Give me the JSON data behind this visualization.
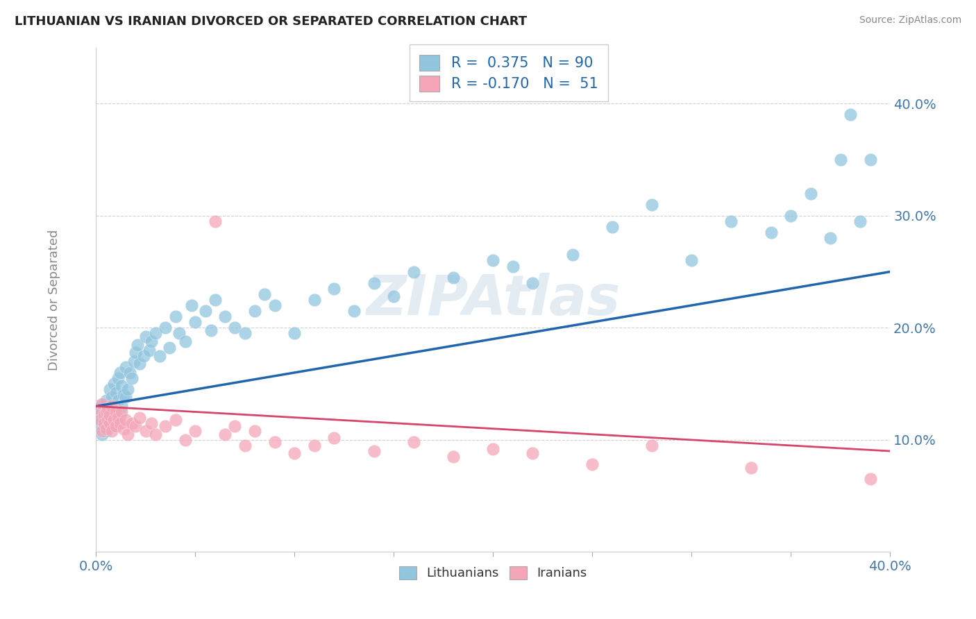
{
  "title": "LITHUANIAN VS IRANIAN DIVORCED OR SEPARATED CORRELATION CHART",
  "source": "Source: ZipAtlas.com",
  "ylabel": "Divorced or Separated",
  "xlim": [
    0.0,
    0.4
  ],
  "ylim": [
    0.0,
    0.45
  ],
  "xticks": [
    0.0,
    0.05,
    0.1,
    0.15,
    0.2,
    0.25,
    0.3,
    0.35,
    0.4
  ],
  "ytick_positions": [
    0.1,
    0.2,
    0.3,
    0.4
  ],
  "ytick_labels": [
    "10.0%",
    "20.0%",
    "30.0%",
    "40.0%"
  ],
  "R_lithuanian": 0.375,
  "N_lithuanian": 90,
  "R_iranian": -0.17,
  "N_iranian": 51,
  "blue_color": "#92c5de",
  "pink_color": "#f4a6b8",
  "blue_line_color": "#2166ac",
  "pink_line_color": "#d6456b",
  "watermark": "ZIPAtlas",
  "legend_items": [
    "Lithuanians",
    "Iranians"
  ],
  "lithuanian_x": [
    0.001,
    0.002,
    0.002,
    0.003,
    0.003,
    0.003,
    0.004,
    0.004,
    0.004,
    0.004,
    0.005,
    0.005,
    0.005,
    0.005,
    0.006,
    0.006,
    0.006,
    0.007,
    0.007,
    0.007,
    0.008,
    0.008,
    0.008,
    0.009,
    0.009,
    0.01,
    0.01,
    0.01,
    0.011,
    0.011,
    0.012,
    0.012,
    0.013,
    0.013,
    0.014,
    0.015,
    0.015,
    0.016,
    0.017,
    0.018,
    0.019,
    0.02,
    0.021,
    0.022,
    0.024,
    0.025,
    0.027,
    0.028,
    0.03,
    0.032,
    0.035,
    0.037,
    0.04,
    0.042,
    0.045,
    0.048,
    0.05,
    0.055,
    0.058,
    0.06,
    0.065,
    0.07,
    0.075,
    0.08,
    0.085,
    0.09,
    0.1,
    0.11,
    0.12,
    0.13,
    0.14,
    0.15,
    0.16,
    0.18,
    0.2,
    0.21,
    0.22,
    0.24,
    0.26,
    0.28,
    0.3,
    0.32,
    0.34,
    0.35,
    0.36,
    0.37,
    0.375,
    0.38,
    0.385,
    0.39
  ],
  "lithuanian_y": [
    0.12,
    0.115,
    0.13,
    0.11,
    0.125,
    0.105,
    0.118,
    0.112,
    0.128,
    0.132,
    0.115,
    0.108,
    0.122,
    0.135,
    0.118,
    0.125,
    0.11,
    0.13,
    0.12,
    0.145,
    0.112,
    0.138,
    0.125,
    0.115,
    0.15,
    0.128,
    0.118,
    0.142,
    0.135,
    0.155,
    0.122,
    0.16,
    0.13,
    0.148,
    0.14,
    0.138,
    0.165,
    0.145,
    0.16,
    0.155,
    0.17,
    0.178,
    0.185,
    0.168,
    0.175,
    0.192,
    0.18,
    0.188,
    0.195,
    0.175,
    0.2,
    0.182,
    0.21,
    0.195,
    0.188,
    0.22,
    0.205,
    0.215,
    0.198,
    0.225,
    0.21,
    0.2,
    0.195,
    0.215,
    0.23,
    0.22,
    0.195,
    0.225,
    0.235,
    0.215,
    0.24,
    0.228,
    0.25,
    0.245,
    0.26,
    0.255,
    0.24,
    0.265,
    0.29,
    0.31,
    0.26,
    0.295,
    0.285,
    0.3,
    0.32,
    0.28,
    0.35,
    0.39,
    0.295,
    0.35
  ],
  "iranian_x": [
    0.001,
    0.002,
    0.003,
    0.003,
    0.004,
    0.004,
    0.005,
    0.005,
    0.006,
    0.006,
    0.007,
    0.007,
    0.008,
    0.008,
    0.009,
    0.01,
    0.01,
    0.011,
    0.012,
    0.013,
    0.014,
    0.015,
    0.016,
    0.018,
    0.02,
    0.022,
    0.025,
    0.028,
    0.03,
    0.035,
    0.04,
    0.045,
    0.05,
    0.06,
    0.065,
    0.07,
    0.075,
    0.08,
    0.09,
    0.1,
    0.11,
    0.12,
    0.14,
    0.16,
    0.18,
    0.2,
    0.22,
    0.25,
    0.28,
    0.33,
    0.39
  ],
  "iranian_y": [
    0.128,
    0.118,
    0.132,
    0.108,
    0.122,
    0.115,
    0.125,
    0.11,
    0.118,
    0.128,
    0.115,
    0.122,
    0.108,
    0.13,
    0.118,
    0.125,
    0.112,
    0.12,
    0.115,
    0.125,
    0.11,
    0.118,
    0.105,
    0.115,
    0.112,
    0.12,
    0.108,
    0.115,
    0.105,
    0.112,
    0.118,
    0.1,
    0.108,
    0.295,
    0.105,
    0.112,
    0.095,
    0.108,
    0.098,
    0.088,
    0.095,
    0.102,
    0.09,
    0.098,
    0.085,
    0.092,
    0.088,
    0.078,
    0.095,
    0.075,
    0.065
  ]
}
